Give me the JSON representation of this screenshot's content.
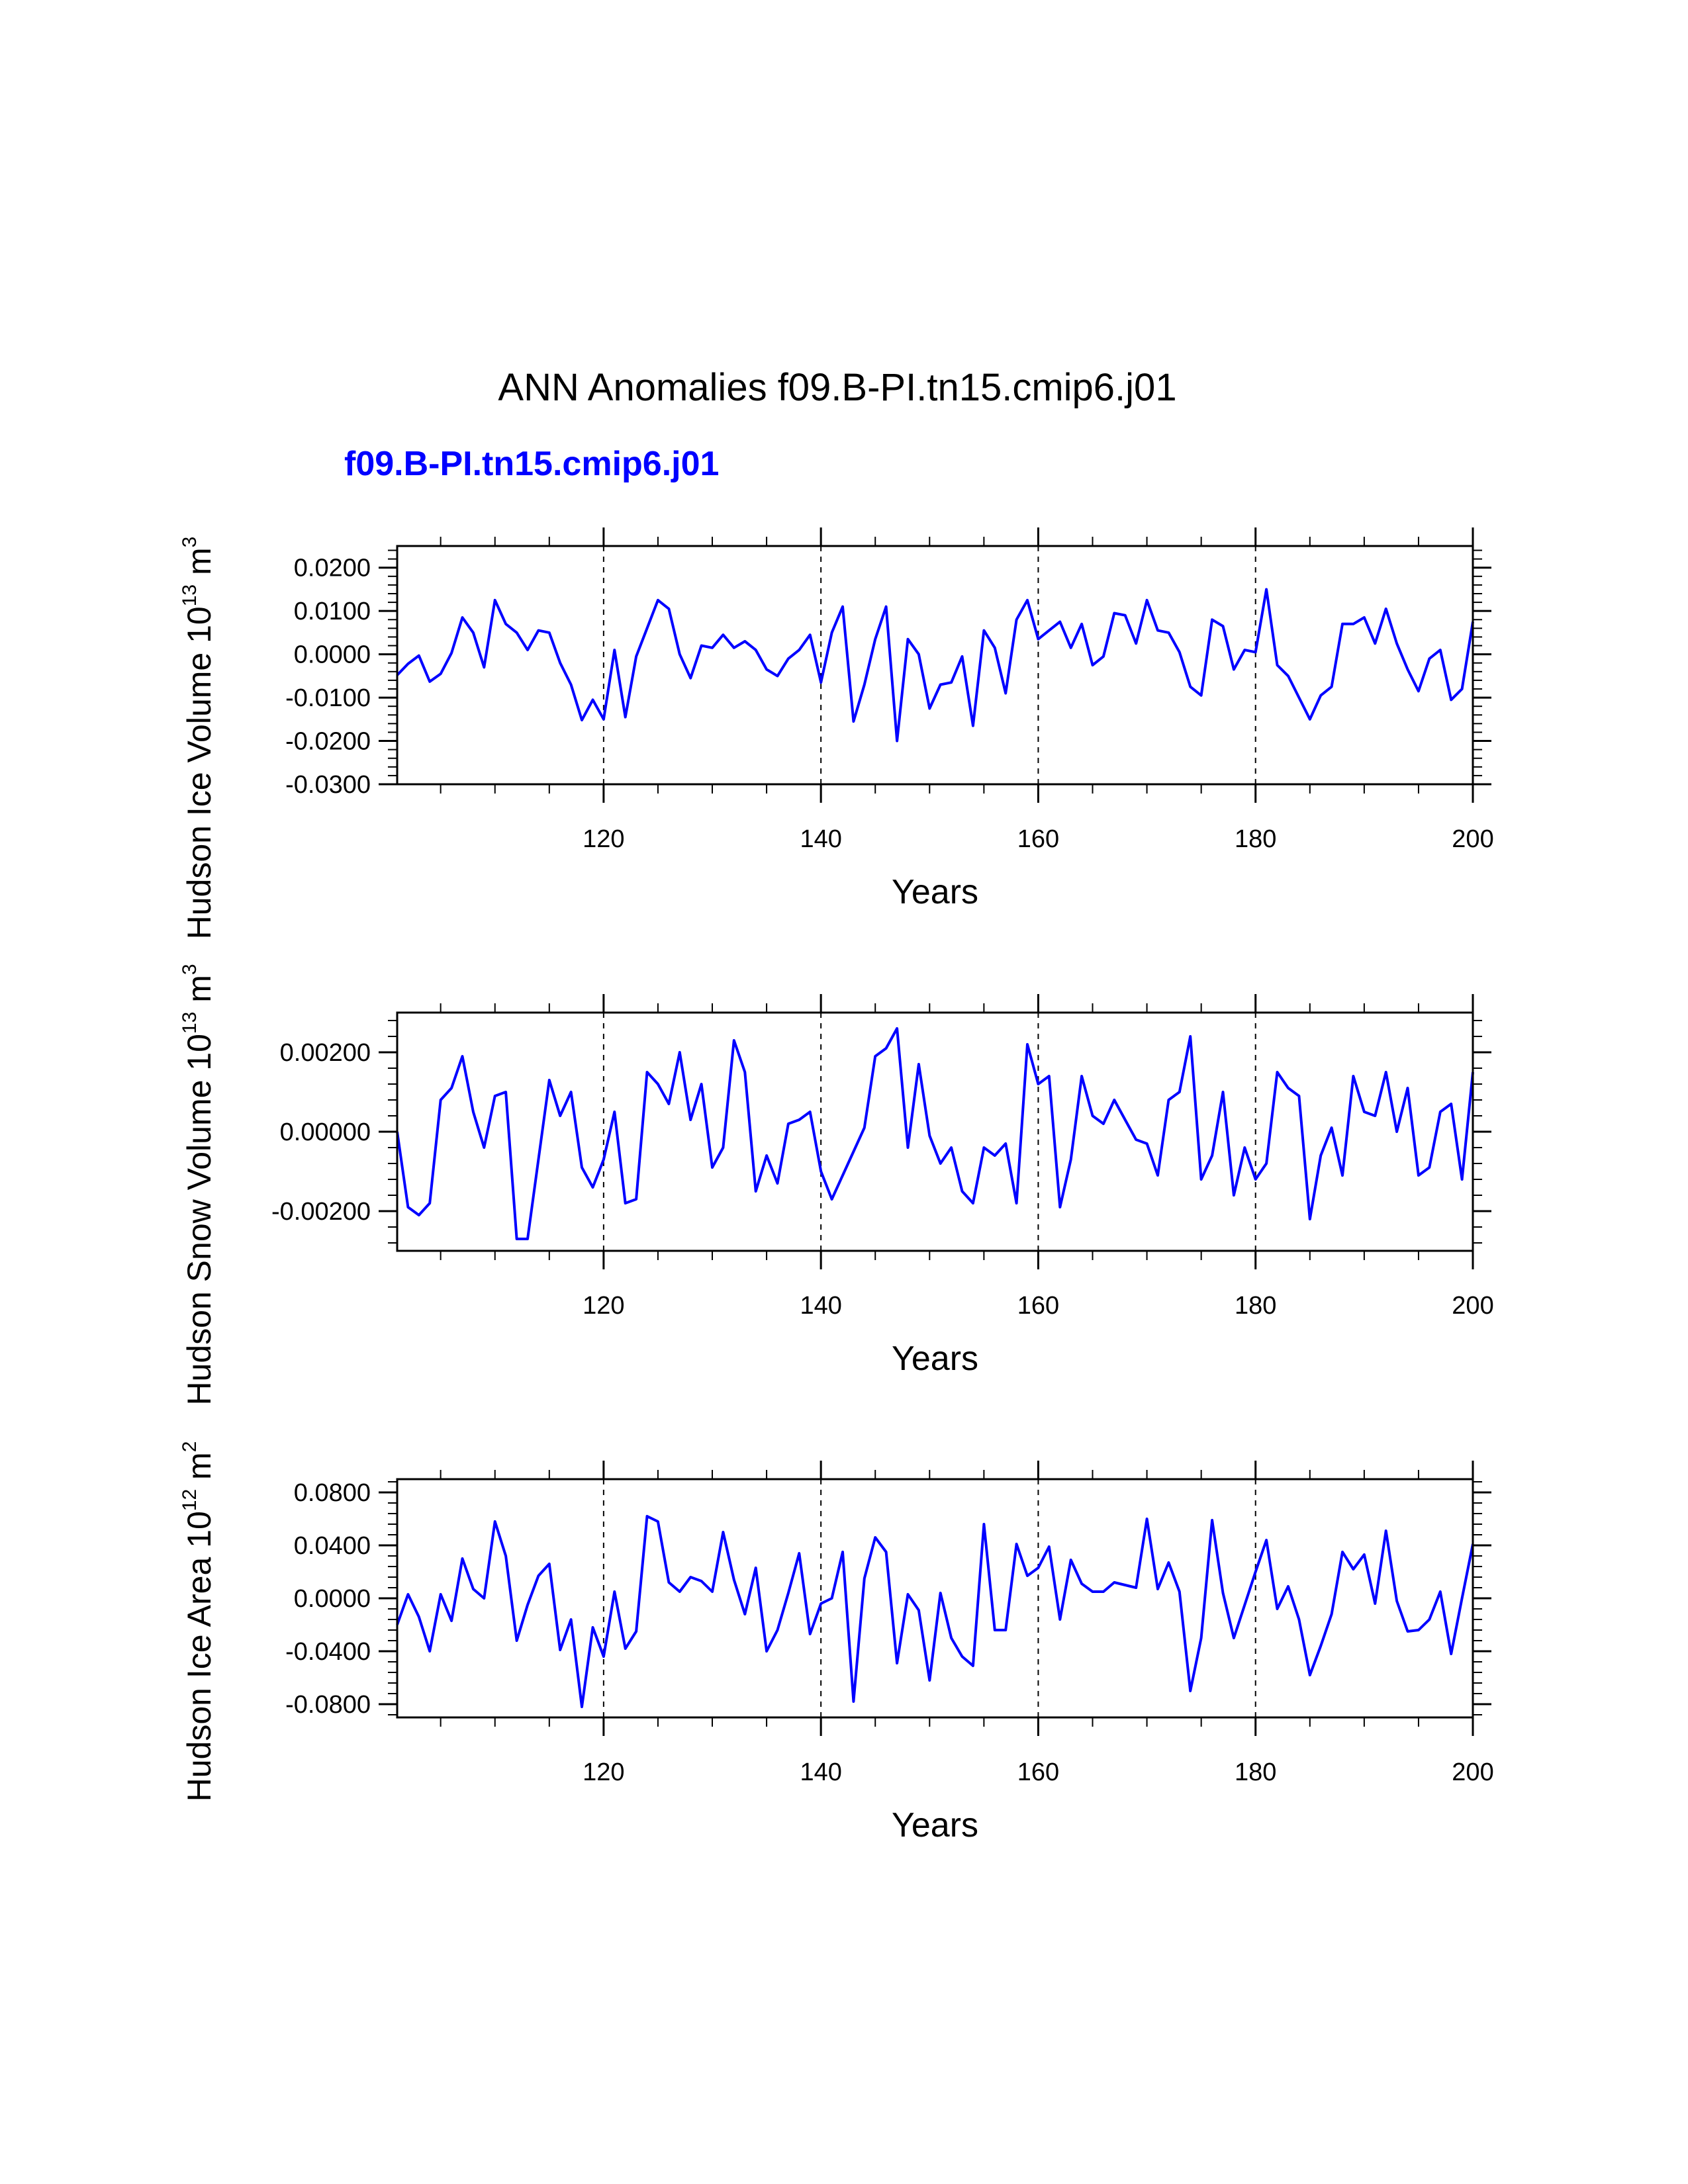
{
  "page_title": "ANN Anomalies f09.B-PI.tn15.cmip6.j01",
  "subtitle": "f09.B-PI.tn15.cmip6.j01",
  "colors": {
    "line": "#0000ff",
    "subtitle": "#0000ff",
    "axis": "#000000",
    "refline": "#000000"
  },
  "chart_data": [
    {
      "type": "line",
      "name": "ice-volume",
      "ylabel": {
        "base": "Hudson Ice Volume 10",
        "exp": "13",
        "unit": " m",
        "unit_exp": "3"
      },
      "xlabel": "Years",
      "xlim": [
        101,
        200
      ],
      "ylim": [
        -0.03,
        0.025
      ],
      "x_ticks": [
        120,
        140,
        160,
        180,
        200
      ],
      "x_tick_labels": [
        "120",
        "140",
        "160",
        "180",
        "200"
      ],
      "y_ticks": [
        0.02,
        0.01,
        0.0,
        -0.01,
        -0.02,
        -0.03
      ],
      "y_tick_labels": [
        "0.0200",
        "0.0100",
        "0.0000",
        "-0.0100",
        "-0.0200",
        "-0.0300"
      ],
      "ref_lines_x": [
        120,
        140,
        160,
        180
      ],
      "x_start": 101,
      "values": [
        -0.0048,
        -0.0022,
        -0.0003,
        -0.0063,
        -0.0045,
        0.0003,
        0.0085,
        0.005,
        -0.003,
        0.0125,
        0.007,
        0.005,
        0.001,
        0.0055,
        0.005,
        -0.002,
        -0.007,
        -0.0152,
        -0.0105,
        -0.015,
        0.001,
        -0.0145,
        -0.0005,
        0.006,
        0.0125,
        0.0105,
        0.0,
        -0.0055,
        0.002,
        0.0015,
        0.0045,
        0.0015,
        0.003,
        0.001,
        -0.0035,
        -0.005,
        -0.001,
        0.001,
        0.0045,
        -0.0065,
        0.005,
        0.011,
        -0.0155,
        -0.007,
        0.0035,
        0.011,
        -0.02,
        0.0035,
        0.0,
        -0.0125,
        -0.007,
        -0.0065,
        -0.0005,
        -0.0165,
        0.0055,
        0.0015,
        -0.009,
        0.008,
        0.0125,
        0.0035,
        0.0055,
        0.0075,
        0.0015,
        0.007,
        -0.0025,
        -0.0005,
        0.0095,
        0.009,
        0.0025,
        0.0125,
        0.0055,
        0.005,
        0.0005,
        -0.0075,
        -0.0095,
        0.008,
        0.0065,
        -0.0035,
        0.001,
        0.0005,
        0.015,
        -0.0025,
        -0.005,
        -0.01,
        -0.015,
        -0.0095,
        -0.0075,
        0.007,
        0.007,
        0.0085,
        0.0025,
        0.0105,
        0.0025,
        -0.0035,
        -0.0085,
        -0.001,
        0.001,
        -0.0105,
        -0.008,
        0.0075
      ]
    },
    {
      "type": "line",
      "name": "snow-volume",
      "ylabel": {
        "base": "Hudson Snow Volume 10",
        "exp": "13",
        "unit": " m",
        "unit_exp": "3"
      },
      "xlabel": "Years",
      "xlim": [
        101,
        200
      ],
      "ylim": [
        -0.003,
        0.003
      ],
      "x_ticks": [
        120,
        140,
        160,
        180,
        200
      ],
      "x_tick_labels": [
        "120",
        "140",
        "160",
        "180",
        "200"
      ],
      "y_ticks": [
        0.002,
        0.0,
        -0.002
      ],
      "y_tick_labels": [
        "0.00200",
        "0.00000",
        "-0.00200"
      ],
      "ref_lines_x": [
        120,
        140,
        160,
        180
      ],
      "x_start": 101,
      "values": [
        0.0,
        -0.0019,
        -0.0021,
        -0.0018,
        0.0008,
        0.0011,
        0.0019,
        0.0005,
        -0.0004,
        0.0009,
        0.001,
        -0.0027,
        -0.0027,
        -0.0007,
        0.0013,
        0.0004,
        0.001,
        -0.0009,
        -0.0014,
        -0.0007,
        0.0005,
        -0.0018,
        -0.0017,
        0.0015,
        0.0012,
        0.0007,
        0.002,
        0.0003,
        0.0012,
        -0.0009,
        -0.0004,
        0.0023,
        0.0015,
        -0.0015,
        -0.0006,
        -0.0013,
        0.0002,
        0.0003,
        0.0005,
        -0.001,
        -0.0017,
        -0.0011,
        -0.0005,
        0.0001,
        0.0019,
        0.0021,
        0.0026,
        -0.0004,
        0.0017,
        -0.0001,
        -0.0008,
        -0.0004,
        -0.0015,
        -0.0018,
        -0.0004,
        -0.0006,
        -0.0003,
        -0.0018,
        0.0022,
        0.0012,
        0.0014,
        -0.0019,
        -0.0007,
        0.0014,
        0.0004,
        0.0002,
        0.0008,
        0.0003,
        -0.0002,
        -0.0003,
        -0.0011,
        0.0008,
        0.001,
        0.0024,
        -0.0012,
        -0.0006,
        0.001,
        -0.0016,
        -0.0004,
        -0.0012,
        -0.0008,
        0.0015,
        0.0011,
        0.0009,
        -0.0022,
        -0.0006,
        0.0001,
        -0.0011,
        0.0014,
        0.0005,
        0.0004,
        0.0015,
        0.0,
        0.0011,
        -0.0011,
        -0.0009,
        0.0005,
        0.0007,
        -0.0012,
        0.0015
      ]
    },
    {
      "type": "line",
      "name": "ice-area",
      "ylabel": {
        "base": "Hudson Ice Area 10",
        "exp": "12",
        "unit": " m",
        "unit_exp": "2"
      },
      "xlabel": "Years",
      "xlim": [
        101,
        200
      ],
      "ylim": [
        -0.09,
        0.09
      ],
      "x_ticks": [
        120,
        140,
        160,
        180,
        200
      ],
      "x_tick_labels": [
        "120",
        "140",
        "160",
        "180",
        "200"
      ],
      "y_ticks": [
        0.08,
        0.04,
        0.0,
        -0.04,
        -0.08
      ],
      "y_tick_labels": [
        "0.0800",
        "0.0400",
        "0.0000",
        "-0.0400",
        "-0.0800"
      ],
      "ref_lines_x": [
        120,
        140,
        160,
        180
      ],
      "x_start": 101,
      "values": [
        -0.02,
        0.003,
        -0.014,
        -0.04,
        0.003,
        -0.017,
        0.03,
        0.007,
        0.0,
        0.058,
        0.032,
        -0.032,
        -0.005,
        0.017,
        0.026,
        -0.039,
        -0.016,
        -0.082,
        -0.022,
        -0.044,
        0.005,
        -0.038,
        -0.025,
        0.062,
        0.058,
        0.012,
        0.005,
        0.016,
        0.013,
        0.005,
        0.05,
        0.014,
        -0.012,
        0.023,
        -0.04,
        -0.024,
        0.004,
        0.034,
        -0.027,
        -0.004,
        0.0,
        0.035,
        -0.078,
        0.015,
        0.046,
        0.035,
        -0.049,
        0.003,
        -0.009,
        -0.062,
        0.004,
        -0.03,
        -0.044,
        -0.051,
        0.056,
        -0.024,
        -0.024,
        0.041,
        0.017,
        0.023,
        0.039,
        -0.016,
        0.029,
        0.011,
        0.005,
        0.005,
        0.012,
        0.01,
        0.008,
        0.06,
        0.007,
        0.027,
        0.005,
        -0.07,
        -0.03,
        0.059,
        0.004,
        -0.03,
        -0.005,
        0.02,
        0.044,
        -0.008,
        0.009,
        -0.016,
        -0.058,
        -0.036,
        -0.012,
        0.035,
        0.022,
        0.033,
        -0.004,
        0.051,
        -0.002,
        -0.025,
        -0.024,
        -0.016,
        0.005,
        -0.042,
        0.0,
        0.041
      ]
    }
  ]
}
